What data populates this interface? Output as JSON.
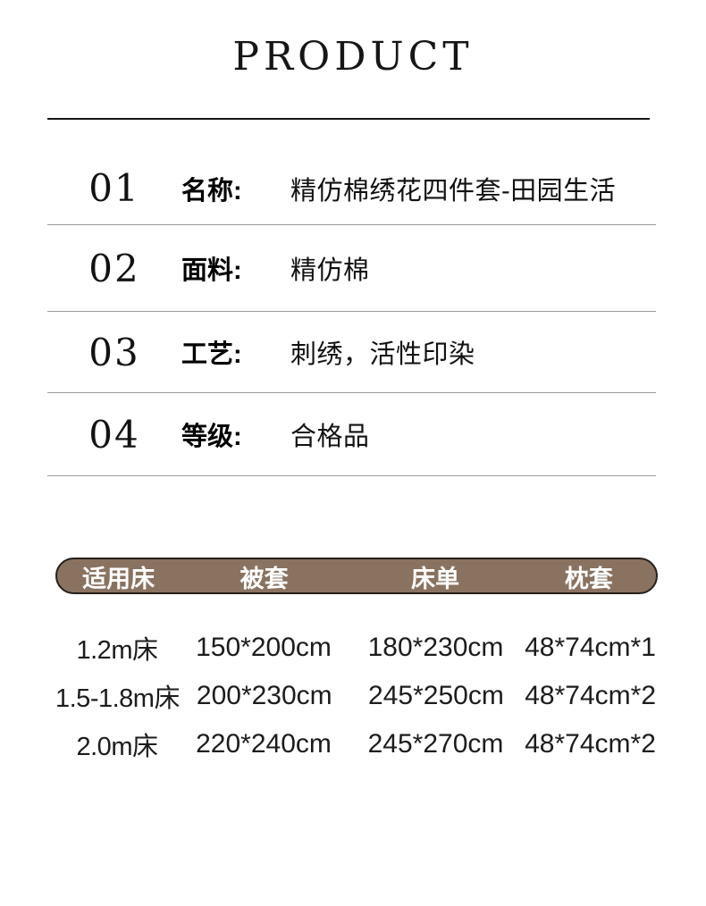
{
  "page": {
    "title": "PRODUCT"
  },
  "specs": [
    {
      "num": "01",
      "label": "名称:",
      "value": "精仿棉绣花四件套-田园生活"
    },
    {
      "num": "02",
      "label": "面料:",
      "value": "精仿棉"
    },
    {
      "num": "03",
      "label": "工艺:",
      "value": "刺绣，活性印染"
    },
    {
      "num": "04",
      "label": "等级:",
      "value": "合格品"
    }
  ],
  "size_table": {
    "headers": [
      "适用床",
      "被套",
      "床单",
      "枕套"
    ],
    "rows": [
      [
        "1.2m床",
        "150*200cm",
        "180*230cm",
        "48*74cm*1"
      ],
      [
        "1.5-1.8m床",
        "200*230cm",
        "245*250cm",
        "48*74cm*2"
      ],
      [
        "2.0m床",
        "220*240cm",
        "245*270cm",
        "48*74cm*2"
      ]
    ]
  },
  "colors": {
    "header_bar": "#8a7261",
    "header_bar_border": "#26201b",
    "divider": "#9b9b9b",
    "title_line": "#161616",
    "text": "#111111",
    "header_text": "#ffffff"
  }
}
